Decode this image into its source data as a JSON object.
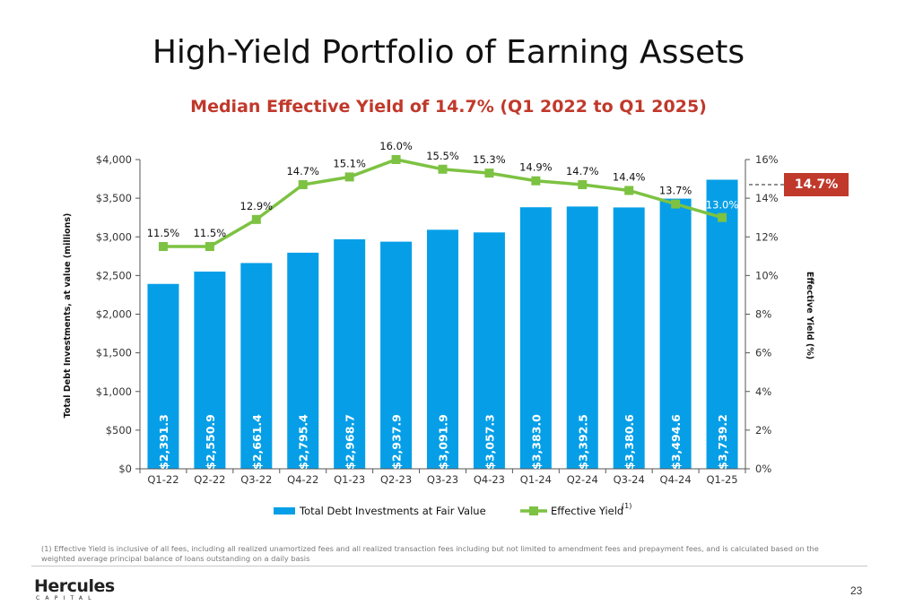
{
  "page": {
    "title": "High-Yield Portfolio of Earning Assets",
    "subtitle": "Median Effective Yield of 14.7% (Q1 2022 to Q1 2025)",
    "annotation_box": "14.7%",
    "footnote_marker": "(1)",
    "footnote_text": "Effective Yield is inclusive of all fees, including all realized unamortized fees and all realized transaction fees including but not limited to amendment fees and prepayment fees, and is calculated based on the weighted average principal balance of loans outstanding on a daily basis",
    "logo_name": "Hercules",
    "logo_sub": "CAPITAL",
    "page_number": "23"
  },
  "colors": {
    "title_red": "#c0392b",
    "bar_blue": "#069fe7",
    "line_green": "#7dc242",
    "annotation_red": "#c0392b",
    "axis_text": "#333333"
  },
  "chart_data": {
    "type": "bar",
    "title": "Median Effective Yield of 14.7% (Q1 2022 to Q1 2025)",
    "categories": [
      "Q1-22",
      "Q2-22",
      "Q3-22",
      "Q4-22",
      "Q1-23",
      "Q2-23",
      "Q3-23",
      "Q4-23",
      "Q1-24",
      "Q2-24",
      "Q3-24",
      "Q4-24",
      "Q1-25"
    ],
    "ylabel": "Total Debt Investments, at value  (millions)",
    "y2label": "Effective Yield (%)",
    "ylim": [
      0,
      4000
    ],
    "y2lim": [
      0,
      16
    ],
    "yticks": [
      "$0",
      "$500",
      "$1,000",
      "$1,500",
      "$2,000",
      "$2,500",
      "$3,000",
      "$3,500",
      "$4,000"
    ],
    "y2ticks": [
      "0%",
      "2%",
      "4%",
      "6%",
      "8%",
      "10%",
      "12%",
      "14%",
      "16%"
    ],
    "grid": false,
    "legend_position": "bottom",
    "series": [
      {
        "name": "Total Debt Investments at Fair Value",
        "type": "bar",
        "values": [
          2391.3,
          2550.9,
          2661.4,
          2795.4,
          2968.7,
          2937.9,
          3091.9,
          3057.3,
          3383.0,
          3392.5,
          3380.6,
          3494.6,
          3739.2
        ],
        "labels": [
          "$2,391.3",
          "$2,550.9",
          "$2,661.4",
          "$2,795.4",
          "$2,968.7",
          "$2,937.9",
          "$3,091.9",
          "$3,057.3",
          "$3,383.0",
          "$3,392.5",
          "$3,380.6",
          "$3,494.6",
          "$3,739.2"
        ]
      },
      {
        "name": "Effective Yield",
        "name_superscript": "(1)",
        "type": "line",
        "axis": "secondary",
        "values": [
          11.5,
          11.5,
          12.9,
          14.7,
          15.1,
          16.0,
          15.5,
          15.3,
          14.9,
          14.7,
          14.4,
          13.7,
          13.0
        ],
        "labels": [
          "11.5%",
          "11.5%",
          "12.9%",
          "14.7%",
          "15.1%",
          "16.0%",
          "15.5%",
          "15.3%",
          "14.9%",
          "14.7%",
          "14.4%",
          "13.7%",
          "13.0%"
        ]
      }
    ],
    "annotations": [
      {
        "type": "reference_line",
        "axis": "secondary",
        "value": 14.7,
        "style": "dashed",
        "label": "14.7%"
      }
    ]
  }
}
